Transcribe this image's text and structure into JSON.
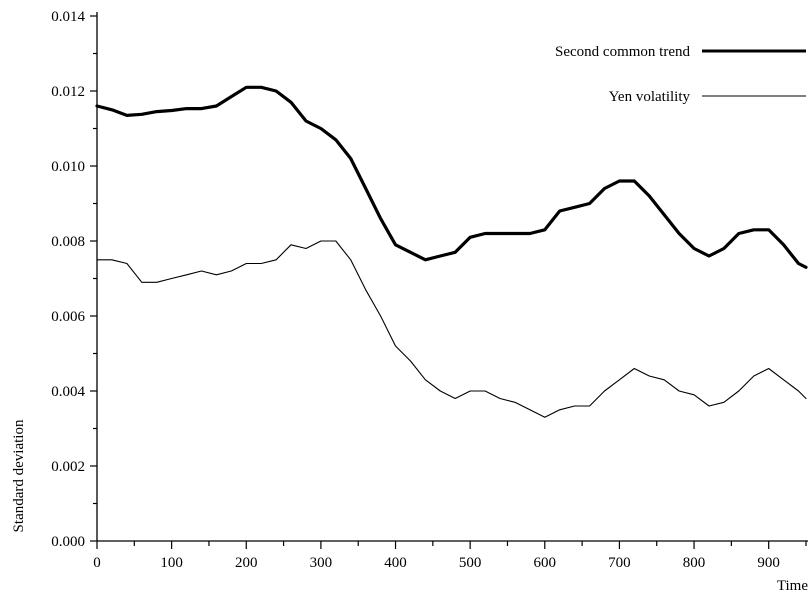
{
  "chart_data": {
    "type": "line",
    "title": "",
    "xlabel": "Time",
    "ylabel": "Standard deviation",
    "xlim": [
      0,
      950
    ],
    "ylim": [
      0,
      0.014
    ],
    "x_ticks": [
      0,
      100,
      200,
      300,
      400,
      500,
      600,
      700,
      800,
      900
    ],
    "x_tick_labels": [
      "0",
      "100",
      "200",
      "300",
      "400",
      "500",
      "600",
      "700",
      "800",
      "900"
    ],
    "y_ticks": [
      0,
      0.002,
      0.004,
      0.006,
      0.008,
      0.01,
      0.012,
      0.014
    ],
    "y_tick_labels": [
      "0.000",
      "0.002",
      "0.004",
      "0.006",
      "0.008",
      "0.010",
      "0.012",
      "0.014"
    ],
    "grid": false,
    "legend_position": "top-right",
    "series": [
      {
        "name": "Second common trend",
        "style": "thick",
        "color": "#000000",
        "x": [
          0,
          20,
          40,
          60,
          80,
          100,
          120,
          140,
          160,
          180,
          200,
          220,
          240,
          260,
          280,
          300,
          320,
          340,
          360,
          380,
          400,
          420,
          440,
          460,
          480,
          500,
          520,
          540,
          560,
          580,
          600,
          620,
          640,
          660,
          680,
          700,
          720,
          740,
          760,
          780,
          800,
          820,
          840,
          860,
          880,
          900,
          920,
          940,
          950
        ],
        "values": [
          0.0116,
          0.0115,
          0.01135,
          0.01138,
          0.01145,
          0.01148,
          0.01153,
          0.01153,
          0.0116,
          0.01185,
          0.0121,
          0.0121,
          0.012,
          0.0117,
          0.0112,
          0.011,
          0.0107,
          0.0102,
          0.0094,
          0.0086,
          0.0079,
          0.0077,
          0.0075,
          0.0076,
          0.0077,
          0.0081,
          0.0082,
          0.0082,
          0.0082,
          0.0082,
          0.0083,
          0.0088,
          0.0089,
          0.009,
          0.0094,
          0.0096,
          0.0096,
          0.0092,
          0.0087,
          0.0082,
          0.0078,
          0.0076,
          0.0078,
          0.0082,
          0.0083,
          0.0083,
          0.0079,
          0.0074,
          0.0073
        ]
      },
      {
        "name": "Yen volatility",
        "style": "thin",
        "color": "#000000",
        "x": [
          0,
          20,
          40,
          60,
          80,
          100,
          120,
          140,
          160,
          180,
          200,
          220,
          240,
          260,
          280,
          300,
          320,
          340,
          360,
          380,
          400,
          420,
          440,
          460,
          480,
          500,
          520,
          540,
          560,
          580,
          600,
          620,
          640,
          660,
          680,
          700,
          720,
          740,
          760,
          780,
          800,
          820,
          840,
          860,
          880,
          900,
          920,
          940,
          950
        ],
        "values": [
          0.0075,
          0.0075,
          0.0074,
          0.0069,
          0.0069,
          0.007,
          0.0071,
          0.0072,
          0.0071,
          0.0072,
          0.0074,
          0.0074,
          0.0075,
          0.0079,
          0.0078,
          0.008,
          0.008,
          0.0075,
          0.0067,
          0.006,
          0.0052,
          0.0048,
          0.0043,
          0.004,
          0.0038,
          0.004,
          0.004,
          0.0038,
          0.0037,
          0.0035,
          0.0033,
          0.0035,
          0.0036,
          0.0036,
          0.004,
          0.0043,
          0.0046,
          0.0044,
          0.0043,
          0.004,
          0.0039,
          0.0036,
          0.0037,
          0.004,
          0.0044,
          0.0046,
          0.0043,
          0.004,
          0.0038
        ]
      }
    ]
  }
}
